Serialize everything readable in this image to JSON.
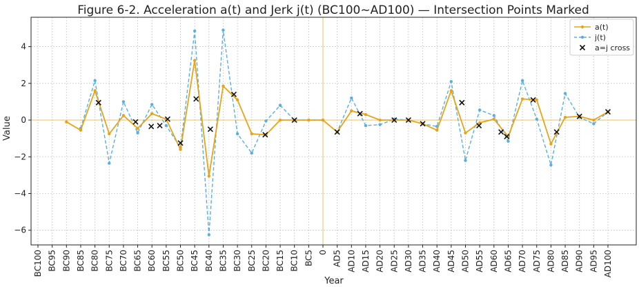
{
  "chart_data": {
    "type": "line",
    "title": "Figure 6-2. Acceleration a(t) and Jerk j(t) (BC100~AD100) — Intersection Points Marked",
    "xlabel": "Year",
    "ylabel": "Value",
    "ylim": [
      -6.8,
      5.6
    ],
    "yticks": [
      -6,
      -4,
      -2,
      0,
      2,
      4
    ],
    "grid": true,
    "legend_position": "top-right",
    "categories": [
      "BC100",
      "BC95",
      "BC90",
      "BC85",
      "BC80",
      "BC75",
      "BC70",
      "BC65",
      "BC60",
      "BC55",
      "BC50",
      "BC45",
      "BC40",
      "BC35",
      "BC30",
      "BC25",
      "BC20",
      "BC15",
      "BC10",
      "BC5",
      "0",
      "AD5",
      "AD10",
      "AD15",
      "AD20",
      "AD25",
      "AD30",
      "AD35",
      "AD40",
      "AD45",
      "AD50",
      "AD55",
      "AD60",
      "AD65",
      "AD70",
      "AD75",
      "AD80",
      "AD85",
      "AD90",
      "AD95",
      "AD100"
    ],
    "reference_lines": {
      "x_category": "0",
      "y_value": 0,
      "color": "#f0c05a"
    },
    "series": [
      {
        "name": "a(t)",
        "color": "#e8a317",
        "style": "solid",
        "values": [
          null,
          null,
          -0.1,
          -0.55,
          1.6,
          -0.75,
          0.25,
          -0.45,
          0.35,
          0.05,
          -1.6,
          3.25,
          -3.05,
          1.85,
          1.1,
          -0.75,
          -0.8,
          0.0,
          0.0,
          0.0,
          0.0,
          -0.65,
          0.5,
          0.3,
          0.0,
          0.0,
          0.0,
          -0.2,
          -0.55,
          1.6,
          -0.7,
          -0.15,
          0.05,
          -0.9,
          1.15,
          1.1,
          -1.3,
          0.15,
          0.2,
          0.0,
          0.45
        ]
      },
      {
        "name": "j(t)",
        "color": "#5aaee0",
        "style": "dashed",
        "values": [
          null,
          null,
          null,
          -0.45,
          2.15,
          -2.35,
          1.0,
          -0.7,
          0.85,
          -0.3,
          -1.5,
          4.85,
          -6.25,
          4.9,
          -0.75,
          -1.8,
          -0.05,
          0.8,
          0.0,
          0.0,
          0.0,
          -0.65,
          1.2,
          -0.3,
          -0.25,
          0.05,
          0.0,
          -0.2,
          -0.35,
          2.1,
          -2.2,
          0.55,
          0.25,
          -1.15,
          2.15,
          0.05,
          -2.45,
          1.45,
          0.15,
          -0.2,
          0.45
        ]
      }
    ],
    "intersections": {
      "name": "a=j cross",
      "marker": "x",
      "points": [
        {
          "x": 4.25,
          "y": 0.95
        },
        {
          "x": 6.85,
          "y": -0.1
        },
        {
          "x": 7.95,
          "y": -0.35
        },
        {
          "x": 8.55,
          "y": -0.3
        },
        {
          "x": 9.1,
          "y": 0.05
        },
        {
          "x": 10.0,
          "y": -1.25
        },
        {
          "x": 11.1,
          "y": 1.15
        },
        {
          "x": 12.1,
          "y": -0.5
        },
        {
          "x": 13.75,
          "y": 1.4
        },
        {
          "x": 15.95,
          "y": -0.8
        },
        {
          "x": 18.0,
          "y": 0.0
        },
        {
          "x": 21.0,
          "y": -0.65
        },
        {
          "x": 22.6,
          "y": 0.35
        },
        {
          "x": 25.0,
          "y": 0.0
        },
        {
          "x": 26.0,
          "y": 0.0
        },
        {
          "x": 27.0,
          "y": -0.2
        },
        {
          "x": 29.75,
          "y": 0.95
        },
        {
          "x": 30.95,
          "y": -0.3
        },
        {
          "x": 32.5,
          "y": -0.65
        },
        {
          "x": 32.9,
          "y": -0.9
        },
        {
          "x": 34.75,
          "y": 1.1
        },
        {
          "x": 36.4,
          "y": -0.65
        },
        {
          "x": 38.0,
          "y": 0.2
        },
        {
          "x": 40.0,
          "y": 0.45
        }
      ]
    },
    "legend": [
      {
        "label": "a(t)",
        "style": "solid-dot",
        "color": "#e8a317"
      },
      {
        "label": "j(t)",
        "style": "dashed-dot",
        "color": "#5aaee0"
      },
      {
        "label": "a=j cross",
        "style": "x",
        "color": "#111111"
      }
    ]
  }
}
